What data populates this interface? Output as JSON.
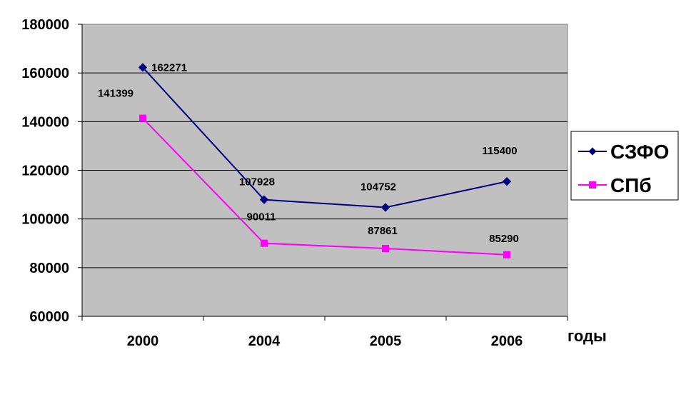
{
  "chart_data": {
    "type": "line",
    "categories": [
      "2000",
      "2004",
      "2005",
      "2006"
    ],
    "xlabel": "годы",
    "ylabel": "",
    "ylim": [
      60000,
      180000
    ],
    "yticks": [
      60000,
      80000,
      100000,
      120000,
      140000,
      160000,
      180000
    ],
    "grid": true,
    "legend_position": "right",
    "series": [
      {
        "name": "СЗФО",
        "values": [
          162271,
          107928,
          104752,
          115400
        ],
        "color": "#000080",
        "marker": "diamond",
        "labels": [
          "162271",
          "107928",
          "104752",
          "115400"
        ]
      },
      {
        "name": "СПб",
        "values": [
          141399,
          90011,
          87861,
          85290
        ],
        "color": "#FF00FF",
        "marker": "square",
        "labels": [
          "141399",
          "90011",
          "87861",
          "85290"
        ]
      }
    ],
    "plot_background": "#C0C0C0"
  }
}
